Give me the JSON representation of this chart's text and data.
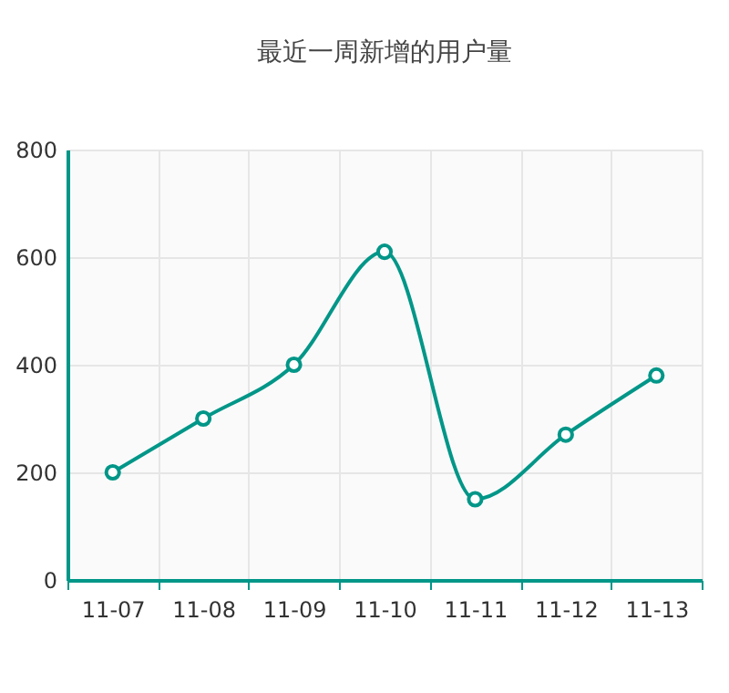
{
  "chart_data": {
    "type": "line",
    "title": "最近一周新增的用户量",
    "categories": [
      "11-07",
      "11-08",
      "11-09",
      "11-10",
      "11-11",
      "11-12",
      "11-13"
    ],
    "series": [
      {
        "color": "#009688",
        "values": [
          200,
          300,
          400,
          610,
          150,
          270,
          380
        ]
      }
    ],
    "ylim": [
      0,
      800
    ],
    "yticks": [
      0,
      200,
      400,
      600,
      800
    ],
    "grid": true,
    "marker": "circle"
  }
}
